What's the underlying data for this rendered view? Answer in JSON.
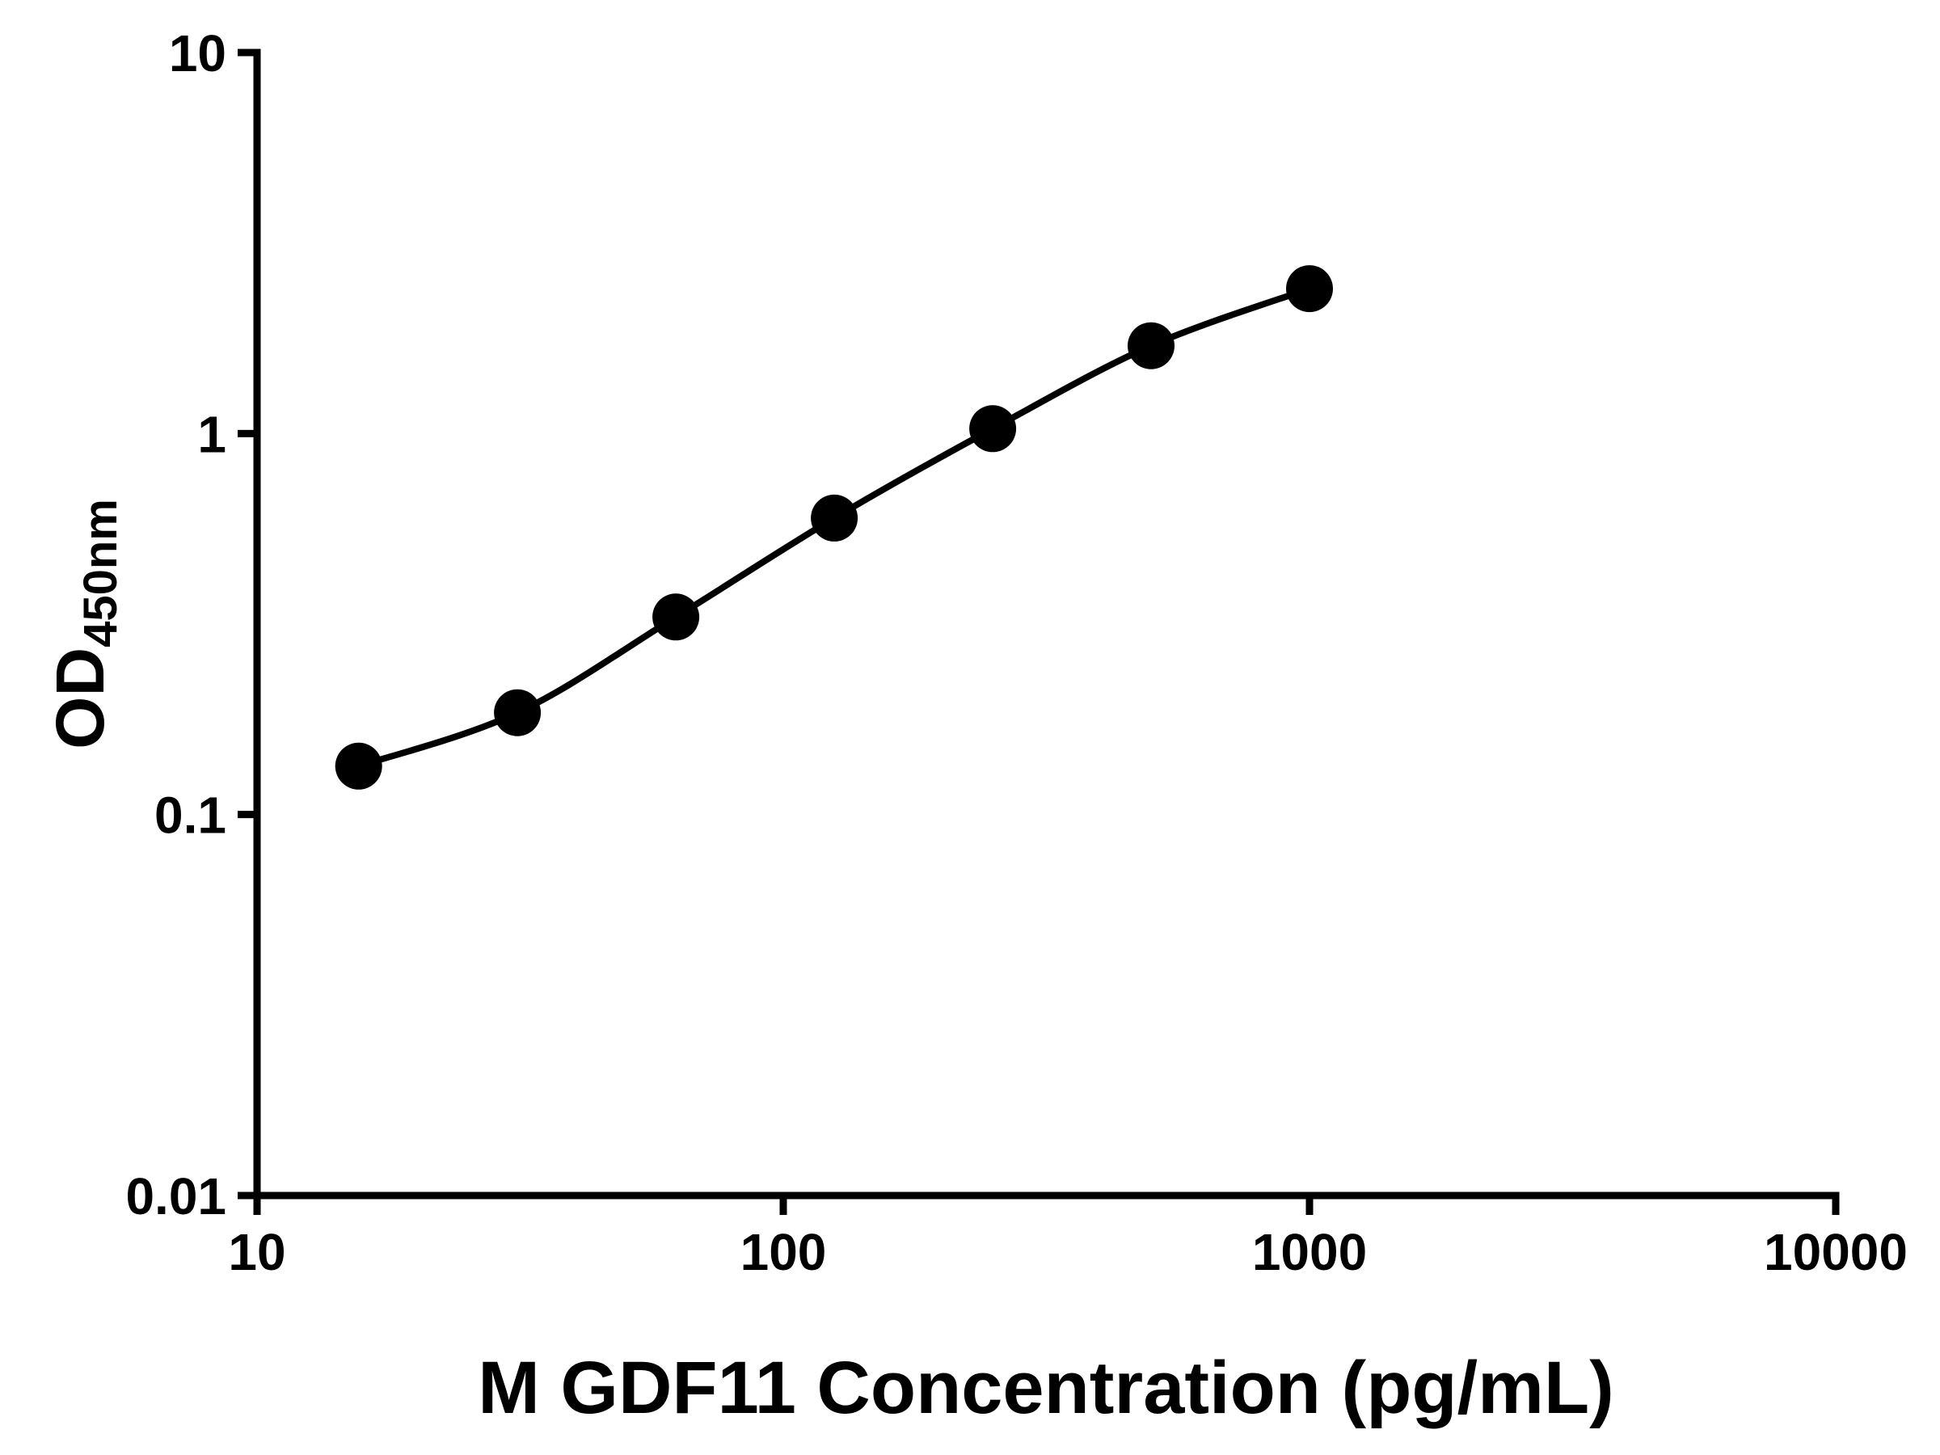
{
  "chart_data": {
    "type": "scatter",
    "title": "",
    "xlabel": "M GDF11 Concentration (pg/mL)",
    "ylabel_main": "OD",
    "ylabel_sub": "450nm",
    "x": [
      15.6,
      31.25,
      62.5,
      125,
      250,
      500,
      1000
    ],
    "y": [
      0.134,
      0.185,
      0.33,
      0.6,
      1.03,
      1.7,
      2.4
    ],
    "x_scale": "log",
    "y_scale": "log",
    "xlim": [
      10,
      10000
    ],
    "ylim": [
      0.01,
      10
    ],
    "x_ticks": [
      10,
      100,
      1000,
      10000
    ],
    "x_tick_labels": [
      "10",
      "100",
      "1000",
      "10000"
    ],
    "y_ticks": [
      10,
      1,
      0.1,
      0.01
    ],
    "y_tick_labels": [
      "10",
      "1",
      "0.1",
      "0.01"
    ],
    "grid": false,
    "legend_position": "none",
    "marker": "circle",
    "marker_color": "#000000",
    "line_color": "#000000",
    "axis_color": "#000000",
    "background_color": "#ffffff"
  }
}
